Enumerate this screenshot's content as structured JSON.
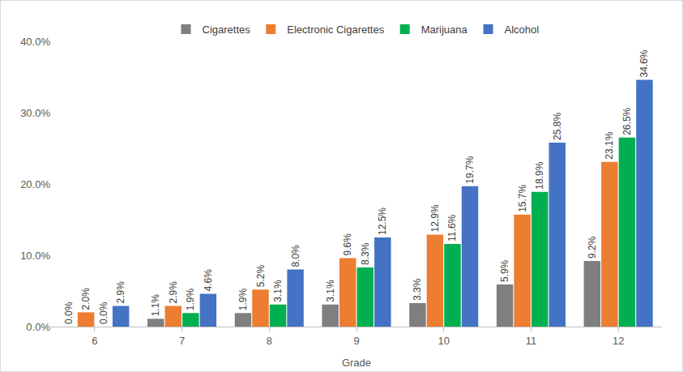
{
  "chart_data": {
    "type": "bar",
    "x_label": "Grade",
    "categories": [
      "6",
      "7",
      "8",
      "9",
      "10",
      "11",
      "12"
    ],
    "series": [
      {
        "name": "Cigarettes",
        "color": "#7f7f7f",
        "values": [
          0.0,
          1.1,
          1.9,
          3.1,
          3.3,
          5.9,
          9.2
        ],
        "value_labels": [
          "0.0%",
          "1.1%",
          "1.9%",
          "3.1%",
          "3.3%",
          "5.9%",
          "9.2%"
        ]
      },
      {
        "name": "Electronic Cigarettes",
        "color": "#ed7d31",
        "values": [
          2.0,
          2.9,
          5.2,
          9.6,
          12.9,
          15.7,
          23.1
        ],
        "value_labels": [
          "2.0%",
          "2.9%",
          "5.2%",
          "9.6%",
          "12.9%",
          "15.7%",
          "23.1%"
        ]
      },
      {
        "name": "Marijuana",
        "color": "#00b050",
        "values": [
          0.0,
          1.9,
          3.1,
          8.3,
          11.6,
          18.9,
          26.5
        ],
        "value_labels": [
          "0.0%",
          "1.9%",
          "3.1%",
          "8.3%",
          "11.6%",
          "18.9%",
          "26.5%"
        ]
      },
      {
        "name": "Alcohol",
        "color": "#4472c4",
        "values": [
          2.9,
          4.6,
          8.0,
          12.5,
          19.7,
          25.8,
          34.6
        ],
        "value_labels": [
          "2.9%",
          "4.6%",
          "8.0%",
          "12.5%",
          "19.7%",
          "25.8%",
          "34.6%"
        ]
      }
    ],
    "ylim": [
      0,
      40
    ],
    "yticks": [
      {
        "value": 0,
        "label": "0.0%"
      },
      {
        "value": 10,
        "label": "10.0%"
      },
      {
        "value": 20,
        "label": "20.0%"
      },
      {
        "value": 30,
        "label": "30.0%"
      },
      {
        "value": 40,
        "label": "40.0%"
      }
    ],
    "grid": false,
    "legend": "top",
    "data_labels": true
  }
}
